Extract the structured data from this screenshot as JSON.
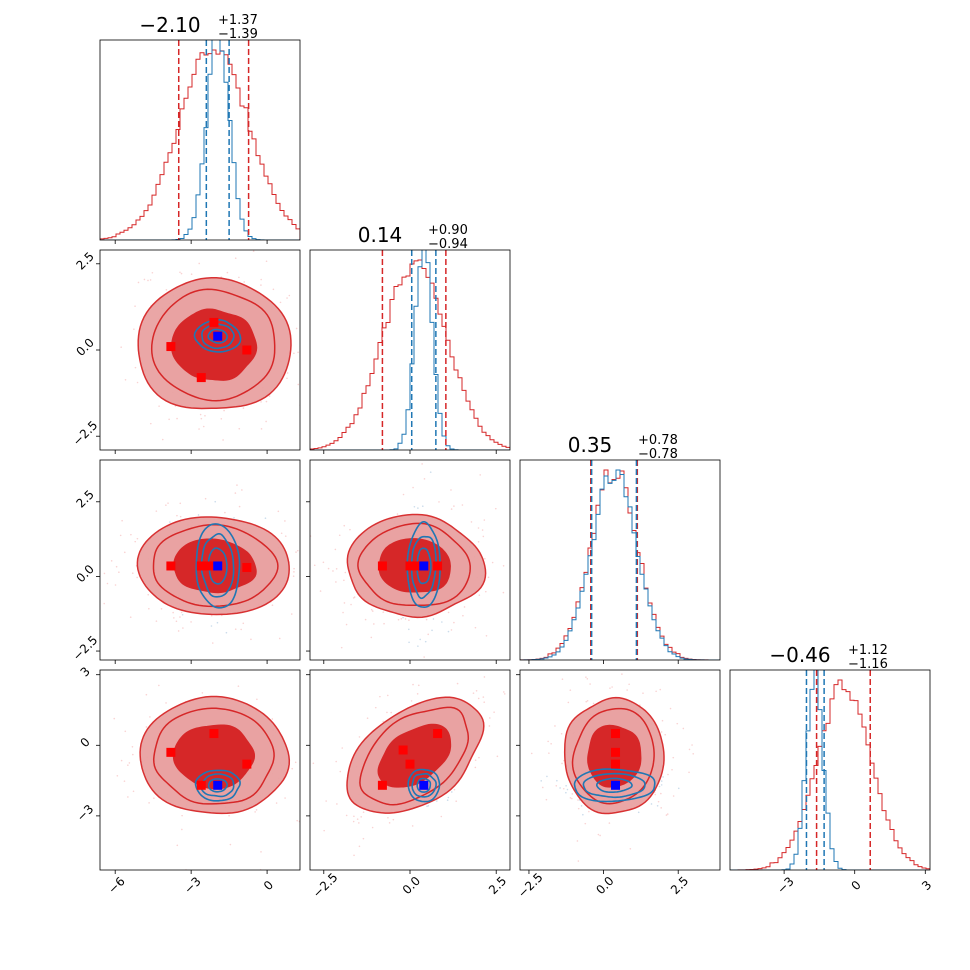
{
  "colors": {
    "red": "#d62728",
    "blue": "#1f77b4",
    "marker_red": "#ff0000",
    "marker_blue": "#0000ff",
    "fill_light": "#e9a2a2",
    "fill_dark": "#d62728"
  },
  "chart_data": {
    "type": "corner",
    "grid": false,
    "legend": "none",
    "parameters": [
      {
        "index": 0,
        "range": [
          -6.6,
          1.3
        ],
        "ticks": [
          -6,
          -3,
          0
        ],
        "tick_labels": [
          "−6",
          "−3",
          "0"
        ],
        "title": {
          "main": "−2.10",
          "sup": "+1.37",
          "sub": "−1.39"
        },
        "red_quantiles": [
          -3.49,
          -2.1,
          -0.73
        ],
        "blue_quantiles": [
          -2.4,
          -1.5
        ],
        "red_hist": {
          "mean": -2.1,
          "sd": 1.38
        },
        "blue_hist": {
          "mean": -1.95,
          "sd": 0.45
        }
      },
      {
        "index": 1,
        "range": [
          -2.9,
          2.9
        ],
        "ticks": [
          -2.5,
          0.0,
          2.5
        ],
        "tick_labels": [
          "−2.5",
          "0.0",
          "2.5"
        ],
        "title": {
          "main": "0.14",
          "sup": "+0.90",
          "sub": "−0.94"
        },
        "red_quantiles": [
          -0.8,
          0.14,
          1.04
        ],
        "blue_quantiles": [
          0.05,
          0.75
        ],
        "red_hist": {
          "mean": 0.14,
          "sd": 0.92
        },
        "blue_hist": {
          "mean": 0.4,
          "sd": 0.25
        }
      },
      {
        "index": 2,
        "range": [
          -2.8,
          3.9
        ],
        "ticks": [
          -2.5,
          0.0,
          2.5
        ],
        "tick_labels": [
          "−2.5",
          "0.0",
          "2.5"
        ],
        "title": {
          "main": "0.35",
          "sup": "+0.78",
          "sub": "−0.78"
        },
        "red_quantiles": [
          -0.43,
          0.35,
          1.13
        ],
        "blue_quantiles": [
          -0.4,
          1.1
        ],
        "red_hist": {
          "mean": 0.35,
          "sd": 0.78
        },
        "blue_hist": {
          "mean": 0.35,
          "sd": 0.75
        }
      },
      {
        "index": 3,
        "range": [
          -5.3,
          3.2
        ],
        "ticks": [
          -3,
          0,
          3
        ],
        "tick_labels": [
          "−3",
          "0",
          "3"
        ],
        "title": {
          "main": "−0.46",
          "sup": "+1.12",
          "sub": "−1.16"
        },
        "red_quantiles": [
          -1.62,
          -0.46,
          0.66
        ],
        "blue_quantiles": [
          -2.05,
          -1.3
        ],
        "red_hist": {
          "mean": -0.46,
          "sd": 1.14
        },
        "blue_hist": {
          "mean": -1.7,
          "sd": 0.35
        }
      }
    ],
    "pairs": [
      {
        "i": 1,
        "j": 0,
        "red": {
          "cx": -2.1,
          "cy": 0.14,
          "sx": 1.38,
          "sy": 0.92
        },
        "blue": {
          "cx": -1.95,
          "cy": 0.4,
          "sx": 0.45,
          "sy": 0.25
        },
        "red_markers": [
          [
            -3.8,
            0.1
          ],
          [
            -2.6,
            -0.8
          ],
          [
            -2.1,
            0.8
          ],
          [
            -0.8,
            0.0
          ]
        ],
        "blue_marker": [
          -1.95,
          0.4
        ]
      },
      {
        "i": 2,
        "j": 0,
        "red": {
          "cx": -2.1,
          "cy": 0.35,
          "sx": 1.38,
          "sy": 0.78
        },
        "blue": {
          "cx": -1.95,
          "cy": 0.35,
          "sx": 0.45,
          "sy": 0.75
        },
        "red_markers": [
          [
            -3.8,
            0.35
          ],
          [
            -2.6,
            0.35
          ],
          [
            -2.3,
            0.35
          ],
          [
            -0.8,
            0.3
          ]
        ],
        "blue_marker": [
          -1.95,
          0.35
        ]
      },
      {
        "i": 2,
        "j": 1,
        "red": {
          "cx": 0.14,
          "cy": 0.35,
          "sx": 0.92,
          "sy": 0.78
        },
        "blue": {
          "cx": 0.4,
          "cy": 0.35,
          "sx": 0.25,
          "sy": 0.75
        },
        "red_markers": [
          [
            -0.8,
            0.35
          ],
          [
            0.0,
            0.35
          ],
          [
            0.15,
            0.35
          ],
          [
            0.8,
            0.35
          ]
        ],
        "blue_marker": [
          0.4,
          0.35
        ]
      },
      {
        "i": 3,
        "j": 0,
        "red": {
          "cx": -2.1,
          "cy": -0.46,
          "sx": 1.38,
          "sy": 1.14
        },
        "blue": {
          "cx": -1.95,
          "cy": -1.7,
          "sx": 0.45,
          "sy": 0.35
        },
        "red_markers": [
          [
            -3.8,
            -0.3
          ],
          [
            -2.6,
            -1.7
          ],
          [
            -2.1,
            0.5
          ],
          [
            -0.8,
            -0.8
          ]
        ],
        "blue_marker": [
          -1.95,
          -1.7
        ]
      },
      {
        "i": 3,
        "j": 1,
        "red": {
          "cx": 0.14,
          "cy": -0.46,
          "sx": 0.92,
          "sy": 1.14,
          "rho": 0.45
        },
        "blue": {
          "cx": 0.4,
          "cy": -1.7,
          "sx": 0.25,
          "sy": 0.35
        },
        "red_markers": [
          [
            -0.8,
            -1.7
          ],
          [
            -0.2,
            -0.2
          ],
          [
            0.0,
            -0.8
          ],
          [
            0.8,
            0.5
          ]
        ],
        "blue_marker": [
          0.4,
          -1.7
        ]
      },
      {
        "i": 3,
        "j": 2,
        "red": {
          "cx": 0.35,
          "cy": -0.46,
          "sx": 0.78,
          "sy": 1.14
        },
        "blue": {
          "cx": 0.35,
          "cy": -1.7,
          "sx": 0.75,
          "sy": 0.35
        },
        "red_markers": [
          [
            0.4,
            0.5
          ],
          [
            0.4,
            -0.3
          ],
          [
            0.4,
            -0.8
          ]
        ],
        "blue_marker": [
          0.4,
          -1.7
        ]
      }
    ]
  }
}
